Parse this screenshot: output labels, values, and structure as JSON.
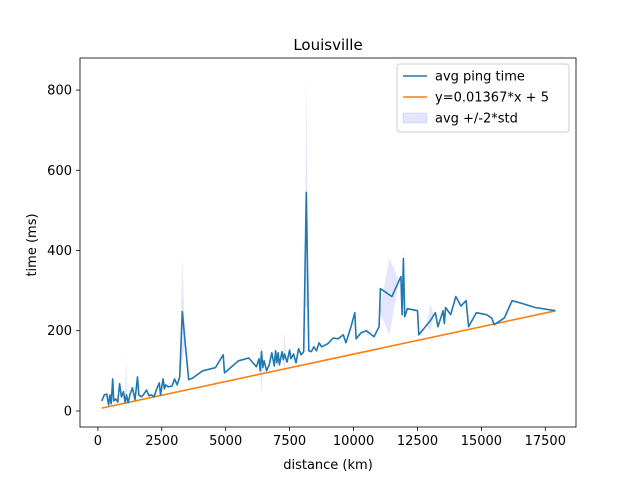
{
  "chart_data": {
    "type": "line",
    "title": "Louisville",
    "xlabel": "distance (km)",
    "ylabel": "time (ms)",
    "xlim": [
      -700,
      18700
    ],
    "ylim": [
      -40,
      880
    ],
    "xticks": [
      0,
      2500,
      5000,
      7500,
      10000,
      12500,
      15000,
      17500
    ],
    "yticks": [
      0,
      200,
      400,
      600,
      800
    ],
    "grid": false,
    "legend_position": "upper right",
    "colors": {
      "avg": "#1f77b4",
      "fit": "#ff7f0e",
      "band": "#0000ff"
    },
    "legend": [
      {
        "label": "avg ping time",
        "kind": "line",
        "series": "avg"
      },
      {
        "label": "y=0.01367*x + 5",
        "kind": "line",
        "series": "fit"
      },
      {
        "label": "avg +/-2*std",
        "kind": "patch",
        "series": "band"
      }
    ],
    "series": [
      {
        "name": "avg ping time",
        "key": "avg",
        "points": [
          [
            150,
            25
          ],
          [
            250,
            40
          ],
          [
            350,
            42
          ],
          [
            420,
            15
          ],
          [
            470,
            40
          ],
          [
            520,
            18
          ],
          [
            580,
            80
          ],
          [
            620,
            25
          ],
          [
            700,
            30
          ],
          [
            780,
            22
          ],
          [
            850,
            68
          ],
          [
            920,
            35
          ],
          [
            1000,
            48
          ],
          [
            1060,
            22
          ],
          [
            1120,
            40
          ],
          [
            1180,
            20
          ],
          [
            1250,
            40
          ],
          [
            1350,
            58
          ],
          [
            1450,
            28
          ],
          [
            1550,
            85
          ],
          [
            1600,
            40
          ],
          [
            1700,
            35
          ],
          [
            1800,
            42
          ],
          [
            1900,
            52
          ],
          [
            2000,
            38
          ],
          [
            2100,
            40
          ],
          [
            2200,
            35
          ],
          [
            2300,
            55
          ],
          [
            2400,
            70
          ],
          [
            2450,
            40
          ],
          [
            2550,
            80
          ],
          [
            2600,
            55
          ],
          [
            2650,
            65
          ],
          [
            2750,
            60
          ],
          [
            2900,
            62
          ],
          [
            3000,
            80
          ],
          [
            3100,
            65
          ],
          [
            3200,
            85
          ],
          [
            3300,
            248
          ],
          [
            3400,
            180
          ],
          [
            3550,
            78
          ],
          [
            3700,
            82
          ],
          [
            4100,
            100
          ],
          [
            4600,
            108
          ],
          [
            4900,
            140
          ],
          [
            4950,
            95
          ],
          [
            5500,
            125
          ],
          [
            5900,
            132
          ],
          [
            6200,
            110
          ],
          [
            6300,
            130
          ],
          [
            6350,
            100
          ],
          [
            6400,
            148
          ],
          [
            6450,
            108
          ],
          [
            6500,
            125
          ],
          [
            6600,
            100
          ],
          [
            6700,
            115
          ],
          [
            6800,
            145
          ],
          [
            6900,
            112
          ],
          [
            6950,
            150
          ],
          [
            7000,
            120
          ],
          [
            7050,
            145
          ],
          [
            7100,
            115
          ],
          [
            7200,
            148
          ],
          [
            7250,
            128
          ],
          [
            7300,
            142
          ],
          [
            7400,
            122
          ],
          [
            7500,
            152
          ],
          [
            7550,
            130
          ],
          [
            7650,
            142
          ],
          [
            7750,
            120
          ],
          [
            7850,
            155
          ],
          [
            7950,
            140
          ],
          [
            8050,
            148
          ],
          [
            8150,
            545
          ],
          [
            8250,
            150
          ],
          [
            8350,
            148
          ],
          [
            8450,
            160
          ],
          [
            8550,
            150
          ],
          [
            8650,
            170
          ],
          [
            8750,
            160
          ],
          [
            9000,
            168
          ],
          [
            9200,
            182
          ],
          [
            9400,
            180
          ],
          [
            9600,
            190
          ],
          [
            9700,
            170
          ],
          [
            9900,
            210
          ],
          [
            10050,
            245
          ],
          [
            10100,
            180
          ],
          [
            10300,
            195
          ],
          [
            10500,
            200
          ],
          [
            10800,
            185
          ],
          [
            11000,
            210
          ],
          [
            11050,
            305
          ],
          [
            11500,
            285
          ],
          [
            11850,
            335
          ],
          [
            11900,
            240
          ],
          [
            11950,
            380
          ],
          [
            12000,
            235
          ],
          [
            12100,
            255
          ],
          [
            12500,
            250
          ],
          [
            12550,
            190
          ],
          [
            13000,
            225
          ],
          [
            13200,
            245
          ],
          [
            13300,
            210
          ],
          [
            13500,
            250
          ],
          [
            13550,
            218
          ],
          [
            13600,
            258
          ],
          [
            13800,
            240
          ],
          [
            14000,
            285
          ],
          [
            14200,
            262
          ],
          [
            14400,
            275
          ],
          [
            14500,
            210
          ],
          [
            14800,
            245
          ],
          [
            15200,
            240
          ],
          [
            15400,
            232
          ],
          [
            15500,
            215
          ],
          [
            15900,
            232
          ],
          [
            16200,
            275
          ],
          [
            16600,
            268
          ],
          [
            17100,
            258
          ],
          [
            17900,
            250
          ]
        ]
      },
      {
        "name": "y=0.01367*x + 5",
        "key": "fit",
        "slope": 0.01367,
        "intercept": 5,
        "x_range": [
          150,
          17900
        ]
      },
      {
        "name": "avg +/-2*std",
        "key": "band",
        "spikes": [
          {
            "x": 1100,
            "low": 0,
            "high": 142,
            "halfwidth": 45
          },
          {
            "x": 3300,
            "low": 120,
            "high": 380,
            "halfwidth": 110
          },
          {
            "x": 6400,
            "low": 45,
            "high": 170,
            "halfwidth": 60
          },
          {
            "x": 7300,
            "low": 90,
            "high": 200,
            "halfwidth": 60
          },
          {
            "x": 8150,
            "low": 255,
            "high": 835,
            "halfwidth": 70
          },
          {
            "x": 11400,
            "low": 190,
            "high": 380,
            "halfwidth": 380
          },
          {
            "x": 11950,
            "low": 330,
            "high": 402,
            "halfwidth": 80
          },
          {
            "x": 13000,
            "low": 200,
            "high": 265,
            "halfwidth": 150
          }
        ]
      }
    ]
  }
}
